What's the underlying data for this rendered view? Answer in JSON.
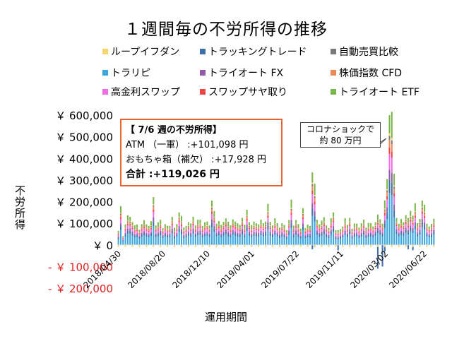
{
  "chart_data": {
    "type": "bar",
    "stacked": true,
    "title": "１週間毎の不労所得の推移",
    "xlabel": "運用期間",
    "ylabel": "不労所得",
    "ylim": [
      -200000,
      600000
    ],
    "y_ticks": [
      600000,
      500000,
      400000,
      300000,
      200000,
      100000,
      0,
      -100000,
      -200000
    ],
    "y_tick_labels": [
      "￥ 600,000",
      "￥ 500,000",
      "￥ 400,000",
      "￥ 300,000",
      "￥ 200,000",
      "￥ 100,000",
      "￥ 0",
      "- ￥ 100,000",
      "- ￥ 200,000"
    ],
    "x_tick_labels": [
      "2018/04/30",
      "2018/08/20",
      "2018/12/10",
      "2019/04/01",
      "2019/07/22",
      "2019/11/11",
      "2020/03/02",
      "2020/06/22"
    ],
    "x_range": [
      "2018/04/30",
      "2020/07/06"
    ],
    "grid": false,
    "legend_position": "top",
    "series": [
      {
        "name": "ループイフダン",
        "color": "#f5d76e"
      },
      {
        "name": "トラッキングトレード",
        "color": "#3d6fa8"
      },
      {
        "name": "自動売買比較",
        "color": "#7a7a7a"
      },
      {
        "name": "トラリピ",
        "color": "#3aa6dd"
      },
      {
        "name": "トライオート FX",
        "color": "#8e5ca8"
      },
      {
        "name": "株価指数 CFD",
        "color": "#ee8a5a"
      },
      {
        "name": "高金利スワップ",
        "color": "#ee6fe6"
      },
      {
        "name": "スワップサヤ取り",
        "color": "#ee4444"
      },
      {
        "name": "トライオート ETF",
        "color": "#7ab648"
      }
    ],
    "weekly_totals": [
      65000,
      172000,
      40000,
      95000,
      130000,
      128000,
      105000,
      85000,
      92000,
      70000,
      96000,
      110000,
      95000,
      88000,
      104000,
      218000,
      90000,
      98000,
      113000,
      78000,
      96000,
      85000,
      88000,
      130000,
      75000,
      95000,
      150000,
      125000,
      78000,
      88000,
      105000,
      95000,
      130000,
      90000,
      110000,
      115000,
      88000,
      98000,
      105000,
      90000,
      205000,
      150000,
      98000,
      110000,
      88000,
      105000,
      123000,
      100000,
      88000,
      118000,
      108000,
      96000,
      92000,
      125000,
      88000,
      160000,
      105000,
      86000,
      105000,
      100000,
      95000,
      112000,
      100000,
      108000,
      180000,
      105000,
      90000,
      115000,
      98000,
      80000,
      100000,
      88000,
      68000,
      115000,
      198000,
      88000,
      115000,
      90000,
      73000,
      170000,
      78000,
      90000,
      88000,
      335000,
      268000,
      115000,
      95000,
      105000,
      125000,
      90000,
      78000,
      118000,
      150000,
      68000,
      65000,
      72000,
      85000,
      115000,
      90000,
      125000,
      75000,
      95000,
      98000,
      80000,
      95000,
      115000,
      80000,
      95000,
      98000,
      85000,
      105000,
      135000,
      118000,
      98000,
      195000,
      300000,
      600000,
      575000,
      320000,
      125000,
      98000,
      115000,
      105000,
      138000,
      118000,
      155000,
      135000,
      180000,
      98000,
      120000,
      205000,
      178000,
      98000,
      85000,
      92000,
      119026
    ],
    "weekly_negatives": [
      0,
      0,
      0,
      0,
      0,
      0,
      0,
      0,
      0,
      0,
      0,
      0,
      0,
      0,
      0,
      0,
      0,
      0,
      0,
      0,
      0,
      0,
      0,
      0,
      0,
      0,
      0,
      0,
      0,
      0,
      0,
      0,
      0,
      0,
      0,
      0,
      0,
      0,
      0,
      0,
      0,
      0,
      0,
      0,
      0,
      0,
      0,
      0,
      0,
      0,
      0,
      0,
      0,
      0,
      0,
      0,
      0,
      0,
      0,
      0,
      0,
      0,
      0,
      0,
      0,
      0,
      0,
      0,
      0,
      0,
      0,
      0,
      0,
      0,
      0,
      0,
      0,
      0,
      0,
      0,
      0,
      0,
      0,
      -20000,
      -10000,
      0,
      0,
      0,
      0,
      0,
      0,
      0,
      0,
      0,
      -25000,
      0,
      0,
      0,
      0,
      0,
      0,
      0,
      0,
      0,
      0,
      0,
      0,
      0,
      0,
      0,
      0,
      -110000,
      0,
      -100000,
      -30000,
      0,
      0,
      0,
      0,
      0,
      0,
      0,
      0,
      0,
      -20000,
      0,
      -25000,
      0,
      0,
      0,
      0,
      0,
      0,
      0,
      0,
      0
    ]
  },
  "callout": {
    "title": "【 7/6 週の不労所得】",
    "line1": "ATM （一軍） :+101,098 円",
    "line2": "おもちゃ箱（補欠） :+17,928 円",
    "total": "合計 :+119,026 円"
  },
  "note": {
    "line1": "コロナショックで",
    "line2": "約 80 万円"
  }
}
